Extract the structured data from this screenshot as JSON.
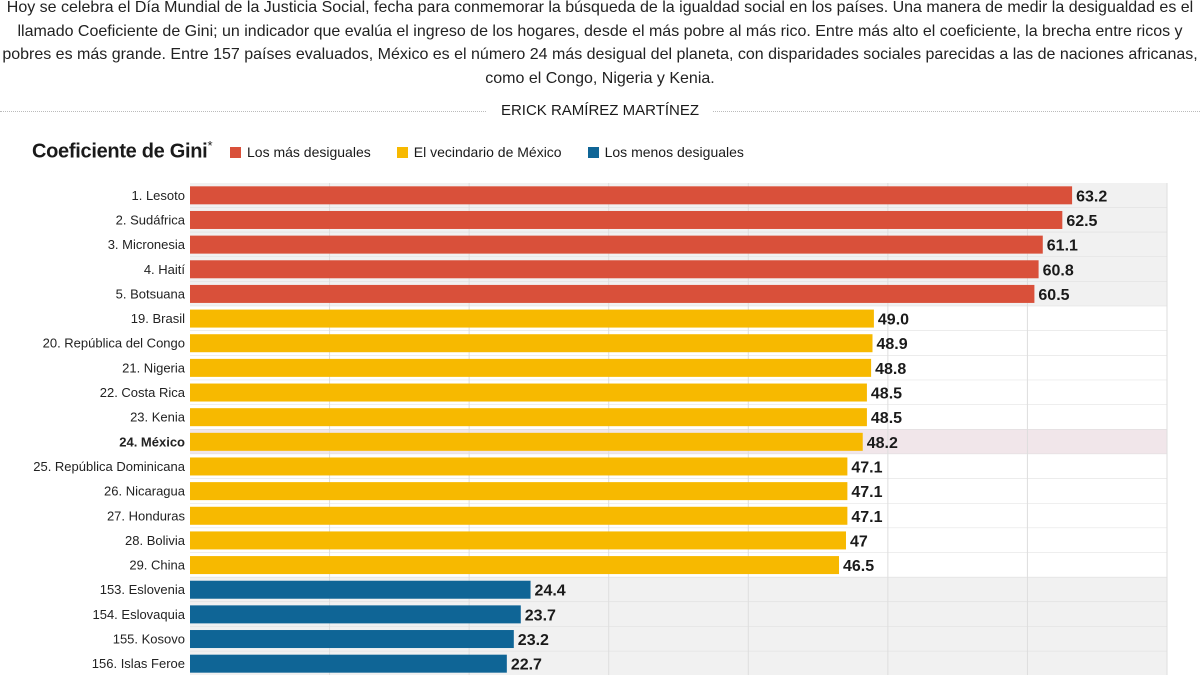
{
  "intro": "Hoy se celebra el Día Mundial de la Justicia Social, fecha para conmemorar la búsqueda de la igualdad social en los países. Una manera de medir la desigualdad es el llamado Coeficiente de Gini; un indicador que evalúa el ingreso de los hogares, desde el más pobre al más rico. Entre más alto el coeficiente, la brecha entre ricos y pobres es más grande. Entre 157 países evaluados, México es el número 24 más desigual del planeta, con disparidades sociales parecidas a las de naciones africanas, como el Congo, Nigeria y Kenia.",
  "byline": "ERICK RAMÍREZ MARTÍNEZ",
  "chart_data": {
    "type": "bar",
    "orientation": "horizontal",
    "title": "Coeficiente de Gini",
    "title_mark": "*",
    "xlim": [
      0,
      70
    ],
    "grid": true,
    "legend": [
      {
        "label": "Los más desiguales",
        "color": "#d9503a"
      },
      {
        "label": "El vecindario de México",
        "color": "#f7b900"
      },
      {
        "label": "Los menos desiguales",
        "color": "#0f6596"
      }
    ],
    "highlight": "24. México",
    "categories": [
      "1. Lesoto",
      "2. Sudáfrica",
      "3. Micronesia",
      "4. Haití",
      "5. Botsuana",
      "19. Brasil",
      "20. República del Congo",
      "21. Nigeria",
      "22. Costa Rica",
      "23. Kenia",
      "24. México",
      "25. República Dominicana",
      "26. Nicaragua",
      "27. Honduras",
      "28. Bolivia",
      "29. China",
      "153. Eslovenia",
      "154. Eslovaquia",
      "155. Kosovo",
      "156. Islas Feroe"
    ],
    "values": [
      63.2,
      62.5,
      61.1,
      60.8,
      60.5,
      49.0,
      48.9,
      48.8,
      48.5,
      48.5,
      48.2,
      47.1,
      47.1,
      47.1,
      47,
      46.5,
      24.4,
      23.7,
      23.2,
      22.7
    ],
    "value_labels": [
      "63.2",
      "62.5",
      "61.1",
      "60.8",
      "60.5",
      "49.0",
      "48.9",
      "48.8",
      "48.5",
      "48.5",
      "48.2",
      "47.1",
      "47.1",
      "47.1",
      "47",
      "46.5",
      "24.4",
      "23.7",
      "23.2",
      "22.7"
    ],
    "groups": [
      0,
      0,
      0,
      0,
      0,
      1,
      1,
      1,
      1,
      1,
      1,
      1,
      1,
      1,
      1,
      1,
      2,
      2,
      2,
      2
    ]
  }
}
